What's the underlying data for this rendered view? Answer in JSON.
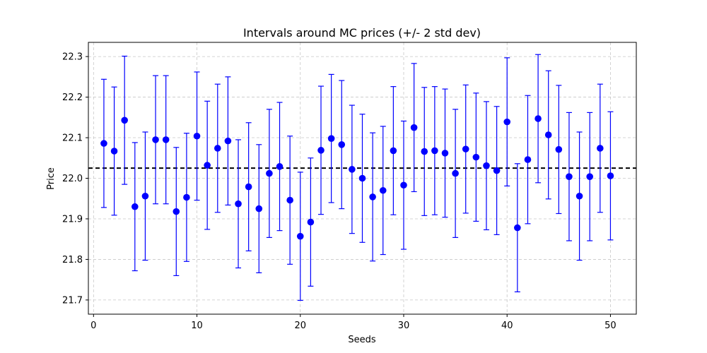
{
  "chart_data": {
    "type": "scatter",
    "title": "Intervals around MC prices (+/- 2 std dev)",
    "xlabel": "Seeds",
    "ylabel": "Price",
    "xlim": [
      -0.5,
      52.5
    ],
    "ylim": [
      21.665,
      22.335
    ],
    "xticks": [
      0,
      10,
      20,
      30,
      40,
      50
    ],
    "yticks": [
      21.7,
      21.8,
      21.9,
      22.0,
      22.1,
      22.2,
      22.3
    ],
    "grid": true,
    "reference_line": 22.025,
    "marker_color": "#0000ff",
    "reference_color": "#000000",
    "x": [
      1,
      2,
      3,
      4,
      5,
      6,
      7,
      8,
      9,
      10,
      11,
      12,
      13,
      14,
      15,
      16,
      17,
      18,
      19,
      20,
      21,
      22,
      23,
      24,
      25,
      26,
      27,
      28,
      29,
      30,
      31,
      32,
      33,
      34,
      35,
      36,
      37,
      38,
      39,
      40,
      41,
      42,
      43,
      44,
      45,
      46,
      47,
      48,
      49,
      50
    ],
    "y": [
      22.086,
      22.067,
      22.143,
      21.93,
      21.956,
      22.095,
      22.095,
      21.918,
      21.953,
      22.104,
      22.032,
      22.074,
      22.092,
      21.937,
      21.979,
      21.925,
      22.012,
      22.029,
      21.946,
      21.857,
      21.892,
      22.069,
      22.098,
      22.083,
      22.022,
      22.0,
      21.954,
      21.97,
      22.068,
      21.983,
      22.125,
      22.066,
      22.068,
      22.062,
      22.012,
      22.072,
      22.052,
      22.031,
      22.019,
      22.139,
      21.878,
      22.046,
      22.147,
      22.107,
      22.071,
      22.004,
      21.956,
      22.004,
      22.074,
      22.006
    ],
    "yerr": 0.158
  }
}
